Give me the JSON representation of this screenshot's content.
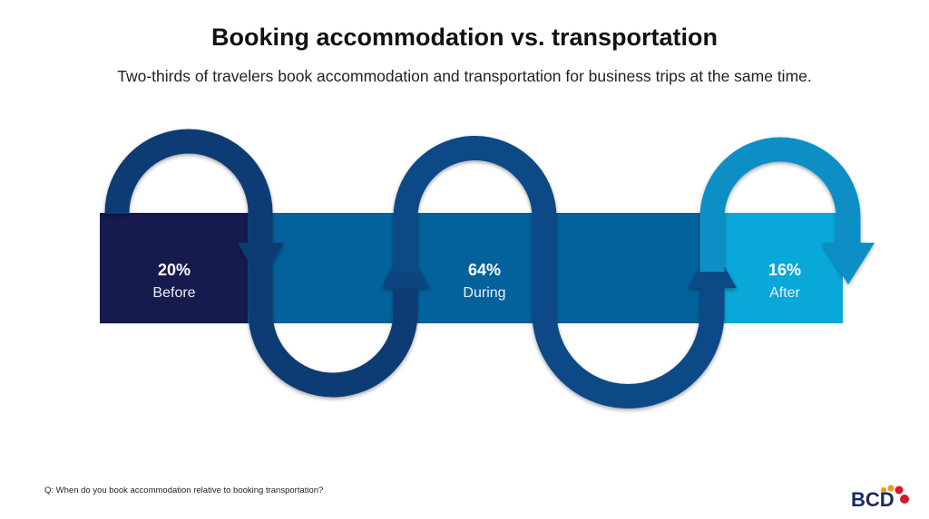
{
  "title": "Booking accommodation vs. transportation",
  "subtitle": "Two-thirds of travelers book accommodation and transportation for business trips at the same time.",
  "stages": [
    {
      "percent": "20%",
      "label": "Before",
      "value": 20,
      "color": "#161a4e"
    },
    {
      "percent": "64%",
      "label": "During",
      "value": 64,
      "color": "#03629c"
    },
    {
      "percent": "16%",
      "label": "After",
      "value": 16,
      "color": "#0aa8d8"
    }
  ],
  "loop_colors": [
    "#0d3a73",
    "#0b4a86",
    "#0a8fc6"
  ],
  "question": "Q: When do you book accommodation relative to booking transportation?",
  "logo": "BCD"
}
